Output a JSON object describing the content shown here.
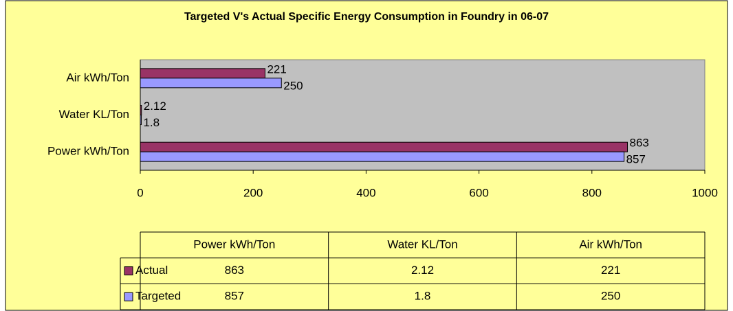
{
  "chart_data": {
    "type": "bar",
    "orientation": "horizontal",
    "title": "Targeted V's Actual Specific Energy Consumption in Foundry in 06-07",
    "categories": [
      "Power kWh/Ton",
      "Water KL/Ton",
      "Air kWh/Ton"
    ],
    "series": [
      {
        "name": "Actual",
        "color": "#993366",
        "values": [
          863,
          2.12,
          221
        ]
      },
      {
        "name": "Targeted",
        "color": "#9999ff",
        "values": [
          857,
          1.8,
          250
        ]
      }
    ],
    "xlim": [
      0,
      1000
    ],
    "xticks": [
      0,
      200,
      400,
      600,
      800,
      1000
    ],
    "plot_background": "#c0c0c0",
    "data_table": true
  }
}
